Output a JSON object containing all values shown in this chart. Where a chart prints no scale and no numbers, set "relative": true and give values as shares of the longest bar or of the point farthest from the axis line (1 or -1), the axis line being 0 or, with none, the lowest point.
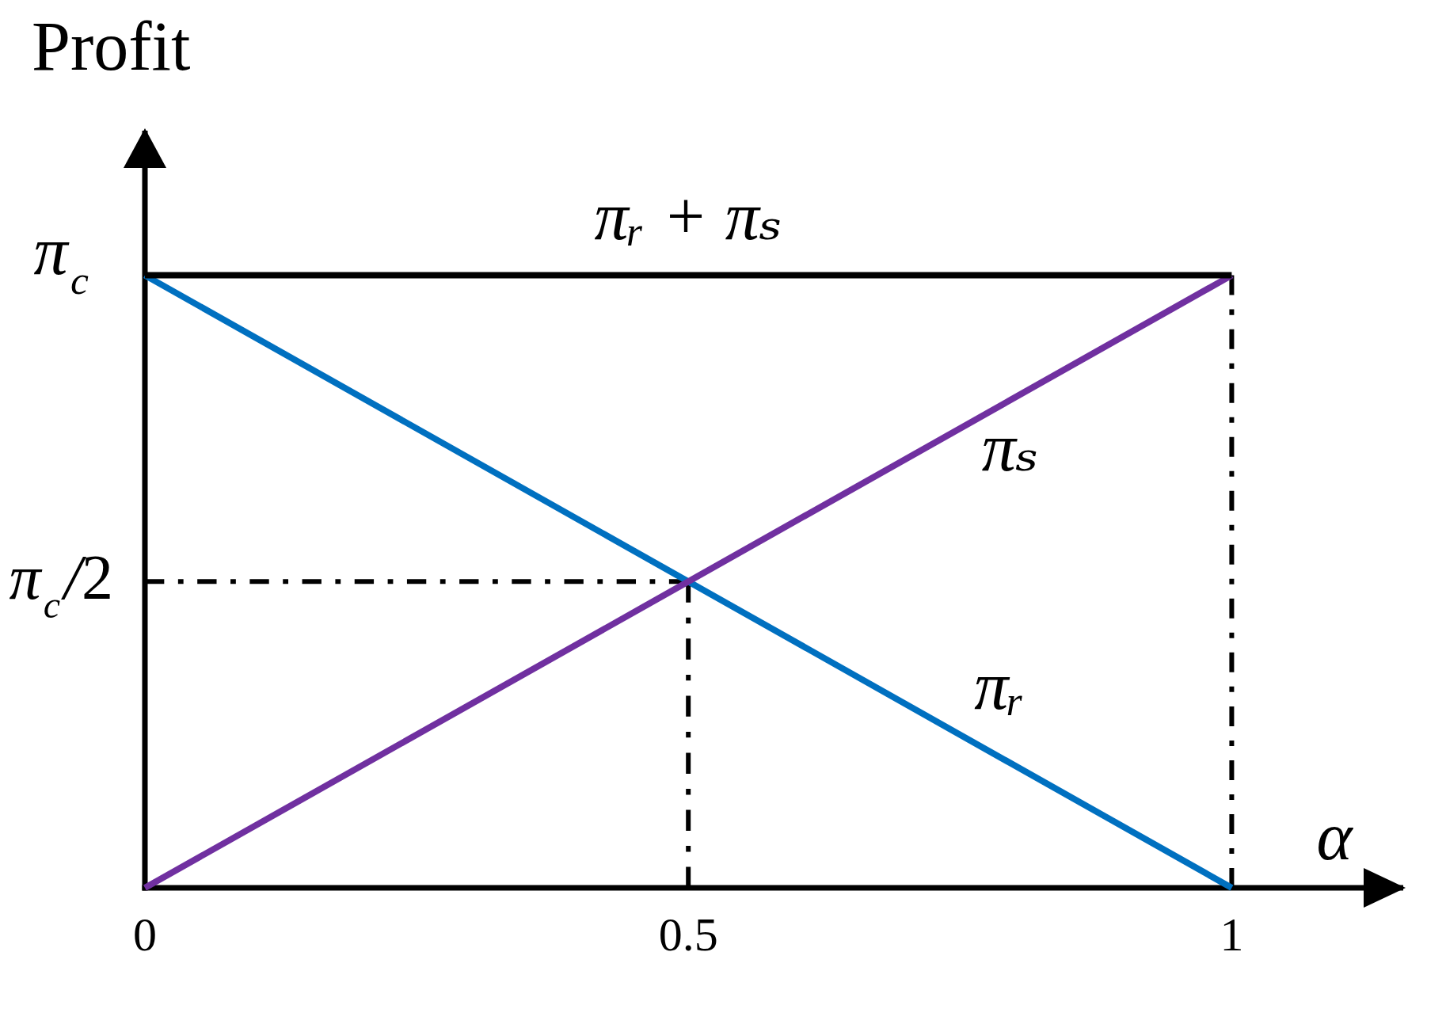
{
  "chart_data": {
    "type": "line",
    "xlabel": "α",
    "ylabel": "Profit",
    "x": [
      0,
      1
    ],
    "xlim": [
      0,
      1.16
    ],
    "xticks": [
      0,
      0.5,
      1
    ],
    "relative": true,
    "grid": false,
    "marker": "none",
    "series": [
      {
        "name": "πᵣ + πₛ",
        "color": "#000000",
        "values": [
          1,
          1
        ]
      },
      {
        "name": "πₛ",
        "color": "#7030a0",
        "values": [
          0,
          1
        ]
      },
      {
        "name": "πᵣ",
        "color": "#0070c0",
        "values": [
          1,
          0
        ]
      },
      {
        "color": "#000000",
        "x": [
          0,
          0.5
        ],
        "values": [
          0.5,
          0.5
        ],
        "line_style": "dashed"
      },
      {
        "color": "#000000",
        "x": [
          0.5,
          0.5
        ],
        "values": [
          0,
          0.5
        ],
        "line_style": "dashed"
      },
      {
        "color": "#000000",
        "x": [
          1,
          1
        ],
        "values": [
          0,
          1
        ],
        "line_style": "dashed"
      }
    ],
    "annotations": [
      {
        "text": "π$_{c}$",
        "x": 0,
        "y": 1
      },
      {
        "text": "π$_{c}$/2",
        "x": 0,
        "y": 0.5
      }
    ]
  }
}
